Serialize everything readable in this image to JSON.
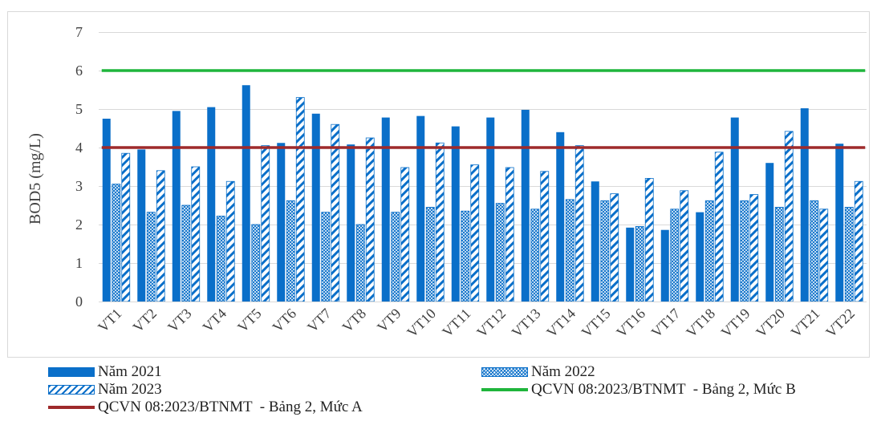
{
  "chart_data": {
    "type": "bar",
    "title": "",
    "xlabel": "",
    "ylabel": "BOD5 (mg/L)",
    "ylim": [
      0,
      7
    ],
    "yticks": [
      "0",
      "1",
      "2",
      "3",
      "4",
      "5",
      "6",
      "7"
    ],
    "grid": true,
    "legend_position": "bottom",
    "categories": [
      "VT1",
      "VT2",
      "VT3",
      "VT4",
      "VT5",
      "VT6",
      "VT7",
      "VT8",
      "VT9",
      "VT10",
      "VT11",
      "VT12",
      "VT13",
      "VT14",
      "VT15",
      "VT16",
      "VT17",
      "VT18",
      "VT19",
      "VT20",
      "VT21",
      "VT22"
    ],
    "series": [
      {
        "name": "Năm 2021",
        "pattern": "solid",
        "color": "#0a6fc9",
        "values": [
          4.75,
          3.95,
          4.95,
          5.05,
          5.62,
          4.12,
          4.88,
          4.08,
          4.78,
          4.82,
          4.55,
          4.78,
          4.98,
          4.4,
          3.12,
          1.92,
          1.86,
          2.32,
          4.78,
          3.6,
          5.02,
          4.1
        ]
      },
      {
        "name": "Năm 2022",
        "pattern": "crosshatch",
        "color": "#0a6fc9",
        "values": [
          3.05,
          2.32,
          2.5,
          2.22,
          2.0,
          2.62,
          2.32,
          2.0,
          2.32,
          2.45,
          2.35,
          2.55,
          2.4,
          2.65,
          2.62,
          1.95,
          2.4,
          2.62,
          2.62,
          2.45,
          2.62,
          2.45
        ]
      },
      {
        "name": "Năm 2023",
        "pattern": "stripes",
        "color": "#0a6fc9",
        "values": [
          3.85,
          3.4,
          3.5,
          3.12,
          4.05,
          5.3,
          4.6,
          4.25,
          3.48,
          4.12,
          3.55,
          3.48,
          3.38,
          4.05,
          2.8,
          3.2,
          2.88,
          3.88,
          2.78,
          4.42,
          2.4,
          3.12
        ]
      }
    ],
    "reference_lines": [
      {
        "name": "QCVN 08:2023/BTNMT  - Bảng 2, Mức B",
        "value": 6,
        "color": "#1fb53c"
      },
      {
        "name": "QCVN 08:2023/BTNMT  - Bảng 2, Mức A",
        "value": 4,
        "color": "#9e2a2b"
      }
    ]
  },
  "legend": {
    "year2021": "Năm 2021",
    "year2022": "Năm 2022",
    "year2023": "Năm 2023",
    "level_b": "QCVN 08:2023/BTNMT  - Bảng 2, Mức B",
    "level_a": "QCVN 08:2023/BTNMT  - Bảng 2, Mức A"
  }
}
